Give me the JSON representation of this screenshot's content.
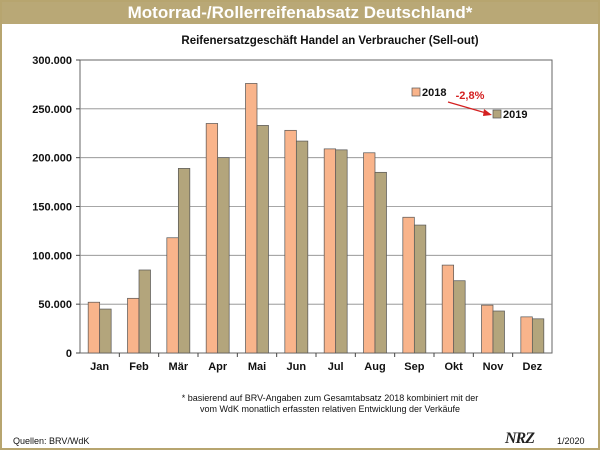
{
  "header": {
    "banner": "Motorrad-/Rollerreifenabsatz Deutschland*"
  },
  "footer": {
    "note_line1": "* basierend auf BRV-Angaben zum Gesamtabsatz 2018 kombiniert mit der",
    "note_line2": "vom WdK monatlich erfassten relativen Entwicklung der Verkäufe",
    "sources": "Quellen: BRV/WdK",
    "logo": "NRZ",
    "issue": "1/2020"
  },
  "colors": {
    "s2018": "#f9b48b",
    "s2019": "#b3a57c",
    "frame": "#b7a56f",
    "arrow": "#d42020"
  },
  "chart_data": {
    "type": "bar",
    "title": "Reifenersatzgeschäft Handel an Verbraucher (Sell-out)",
    "xlabel": "",
    "ylabel": "",
    "ylim": [
      0,
      300000
    ],
    "yticks": [
      0,
      50000,
      100000,
      150000,
      200000,
      250000,
      300000
    ],
    "ytick_labels": [
      "0",
      "50.000",
      "100.000",
      "150.000",
      "200.000",
      "250.000",
      "300.000"
    ],
    "grid": true,
    "categories": [
      "Jan",
      "Feb",
      "Mär",
      "Apr",
      "Mai",
      "Jun",
      "Jul",
      "Aug",
      "Sep",
      "Okt",
      "Nov",
      "Dez"
    ],
    "series": [
      {
        "name": "2018",
        "values": [
          52000,
          56000,
          118000,
          235000,
          276000,
          228000,
          209000,
          205000,
          139000,
          90000,
          49000,
          37000
        ]
      },
      {
        "name": "2019",
        "values": [
          45000,
          85000,
          189000,
          200000,
          233000,
          217000,
          208000,
          185000,
          131000,
          74000,
          43000,
          35000
        ]
      }
    ],
    "annotation": {
      "text": "-2,8%"
    }
  }
}
